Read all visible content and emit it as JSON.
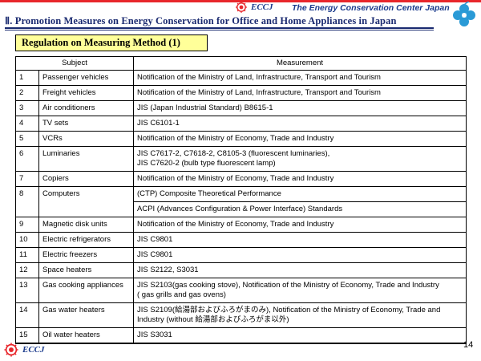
{
  "header": {
    "logo_text": "ECCJ",
    "org_name": "The Energy Conservation Center Japan",
    "colors": {
      "accent_red": "#e8262b",
      "navy": "#1a2a70",
      "clover_blue": "#2a9ad6",
      "section_bg": "#ffff99",
      "rule": "#1a2a70"
    }
  },
  "title": "Ⅱ. Promotion Measures on Energy Conservation for Office and Home Appliances in Japan",
  "section_title": "Regulation on Measuring Method (1)",
  "table": {
    "headers": {
      "subject": "Subject",
      "measurement": "Measurement"
    },
    "rows": [
      {
        "num": "1",
        "subject": "Passenger vehicles",
        "measurement": [
          "Notification of the Ministry of Land, Infrastructure, Transport and Tourism"
        ]
      },
      {
        "num": "2",
        "subject": "Freight vehicles",
        "measurement": [
          "Notification of the Ministry of Land, Infrastructure, Transport and Tourism"
        ]
      },
      {
        "num": "3",
        "subject": "Air conditioners",
        "measurement": [
          "JIS (Japan Industrial Standard) B8615-1"
        ]
      },
      {
        "num": "4",
        "subject": "TV sets",
        "measurement": [
          "JIS C6101-1"
        ]
      },
      {
        "num": "5",
        "subject": "VCRs",
        "measurement": [
          "Notification of the Ministry of Economy, Trade and Industry"
        ]
      },
      {
        "num": "6",
        "subject": "Luminaries",
        "measurement": [
          "JIS C7617-2, C7618-2, C8105-3 (fluorescent luminaries),",
          "JIS C7620-2 (bulb type fluorescent lamp)"
        ]
      },
      {
        "num": "7",
        "subject": "Copiers",
        "measurement": [
          "Notification of the Ministry of Economy, Trade and Industry"
        ]
      },
      {
        "num": "8",
        "subject": "Computers",
        "measurement_split": [
          "(CTP) Composite Theoretical Performance",
          "ACPI (Advances Configuration & Power Interface) Standards"
        ]
      },
      {
        "num": "9",
        "subject": "Magnetic disk units",
        "measurement": [
          "Notification of the Ministry of Economy, Trade and Industry"
        ]
      },
      {
        "num": "10",
        "subject": "Electric refrigerators",
        "measurement": [
          "JIS C9801"
        ]
      },
      {
        "num": "11",
        "subject": "Electric freezers",
        "measurement": [
          "JIS C9801"
        ]
      },
      {
        "num": "12",
        "subject": "Space heaters",
        "measurement": [
          "JIS S2122, S3031"
        ]
      },
      {
        "num": "13",
        "subject": "Gas cooking appliances",
        "measurement": [
          "JIS S2103(gas cooking stove), Notification of the Ministry of Economy, Trade and Industry",
          "( gas grills  and gas ovens)"
        ]
      },
      {
        "num": "14",
        "subject": "Gas water heaters",
        "measurement": [
          "JIS S2109(給湯部およびふろがまのみ), Notification of the Ministry of Economy, Trade and",
          "Industry (without 給湯部およびふろがま以外)"
        ]
      },
      {
        "num": "15",
        "subject": "Oil water heaters",
        "measurement": [
          "JIS S3031"
        ]
      }
    ]
  },
  "footer": {
    "logo_text": "ECCJ",
    "page_number": "14"
  }
}
